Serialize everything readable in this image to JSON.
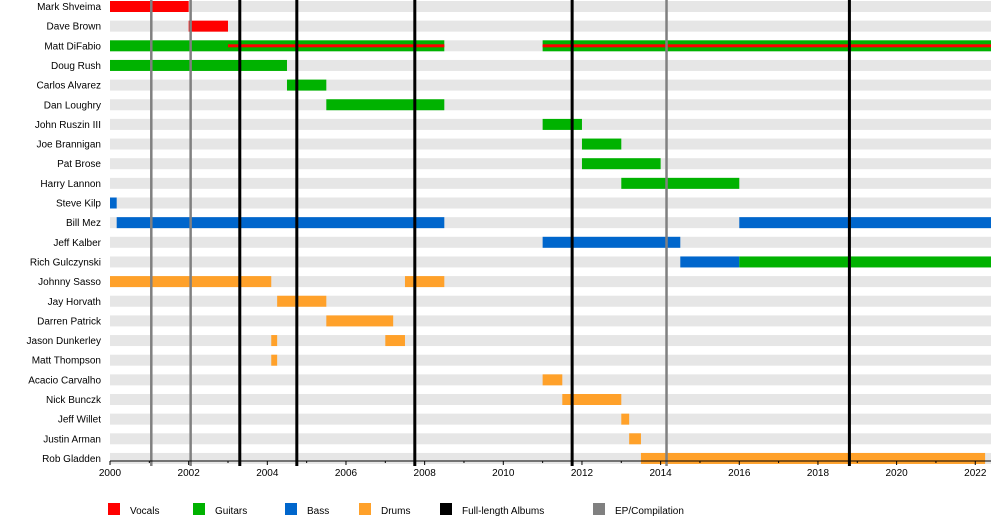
{
  "chart_data": {
    "type": "timeline",
    "x_range": [
      2000,
      2022.4
    ],
    "x_ticks": [
      "2000",
      "2002",
      "2004",
      "2006",
      "2008",
      "2010",
      "2012",
      "2014",
      "2016",
      "2018",
      "2020",
      "2022"
    ],
    "colors": {
      "Vocals": "#ff0000",
      "Guitars": "#00b200",
      "Bass": "#0066cc",
      "Drums": "#ffa12a",
      "Full-length Albums": "#000000",
      "EP/Compilation": "#808080",
      "row_background": "#e6e6e6"
    },
    "members": [
      {
        "name": "Mark Shveima",
        "roles": [
          {
            "role": "Vocals",
            "start": 2000.0,
            "end": 2002.0
          }
        ]
      },
      {
        "name": "Dave Brown",
        "roles": [
          {
            "role": "Vocals",
            "start": 2002.0,
            "end": 2003.0
          }
        ]
      },
      {
        "name": "Matt DiFabio",
        "roles": [
          {
            "role": "Guitars",
            "start": 2000.0,
            "end": 2008.5
          },
          {
            "role": "Vocals",
            "start": 2003.0,
            "end": 2008.5,
            "overlay": true
          },
          {
            "role": "Guitars",
            "start": 2011.0,
            "end": 2022.4
          },
          {
            "role": "Vocals",
            "start": 2011.0,
            "end": 2022.4,
            "overlay": true
          }
        ]
      },
      {
        "name": "Doug Rush",
        "roles": [
          {
            "role": "Guitars",
            "start": 2000.0,
            "end": 2004.5
          }
        ]
      },
      {
        "name": "Carlos Alvarez",
        "roles": [
          {
            "role": "Guitars",
            "start": 2004.5,
            "end": 2005.5
          }
        ]
      },
      {
        "name": "Dan Loughry",
        "roles": [
          {
            "role": "Guitars",
            "start": 2005.5,
            "end": 2008.5
          }
        ]
      },
      {
        "name": "John Ruszin III",
        "roles": [
          {
            "role": "Guitars",
            "start": 2011.0,
            "end": 2012.0
          }
        ]
      },
      {
        "name": "Joe Brannigan",
        "roles": [
          {
            "role": "Guitars",
            "start": 2012.0,
            "end": 2013.0
          }
        ]
      },
      {
        "name": "Pat Brose",
        "roles": [
          {
            "role": "Guitars",
            "start": 2012.0,
            "end": 2014.0
          }
        ]
      },
      {
        "name": "Harry Lannon",
        "roles": [
          {
            "role": "Guitars",
            "start": 2013.0,
            "end": 2016.0
          }
        ]
      },
      {
        "name": "Steve Kilp",
        "roles": [
          {
            "role": "Bass",
            "start": 2000.0,
            "end": 2000.17
          }
        ]
      },
      {
        "name": "Bill Mez",
        "roles": [
          {
            "role": "Bass",
            "start": 2000.17,
            "end": 2008.5
          },
          {
            "role": "Bass",
            "start": 2016.0,
            "end": 2022.4
          }
        ]
      },
      {
        "name": "Jeff Kalber",
        "roles": [
          {
            "role": "Bass",
            "start": 2011.0,
            "end": 2014.5
          }
        ]
      },
      {
        "name": "Rich Gulczynski",
        "roles": [
          {
            "role": "Bass",
            "start": 2014.5,
            "end": 2016.0
          },
          {
            "role": "Guitars",
            "start": 2016.0,
            "end": 2022.4
          }
        ]
      },
      {
        "name": "Johnny Sasso",
        "roles": [
          {
            "role": "Drums",
            "start": 2000.0,
            "end": 2004.1
          },
          {
            "role": "Drums",
            "start": 2007.5,
            "end": 2008.5
          }
        ]
      },
      {
        "name": "Jay Horvath",
        "roles": [
          {
            "role": "Drums",
            "start": 2004.25,
            "end": 2005.5
          }
        ]
      },
      {
        "name": "Darren Patrick",
        "roles": [
          {
            "role": "Drums",
            "start": 2005.5,
            "end": 2007.2
          }
        ]
      },
      {
        "name": "Jason Dunkerley",
        "roles": [
          {
            "role": "Drums",
            "start": 2004.1,
            "end": 2004.25
          },
          {
            "role": "Drums",
            "start": 2007.0,
            "end": 2007.5
          }
        ]
      },
      {
        "name": "Matt Thompson",
        "roles": [
          {
            "role": "Drums",
            "start": 2004.1,
            "end": 2004.25
          }
        ]
      },
      {
        "name": "Acacio Carvalho",
        "roles": [
          {
            "role": "Drums",
            "start": 2011.0,
            "end": 2011.5
          }
        ]
      },
      {
        "name": "Nick Bunczk",
        "roles": [
          {
            "role": "Drums",
            "start": 2011.5,
            "end": 2013.0
          }
        ]
      },
      {
        "name": "Jeff Willet",
        "roles": [
          {
            "role": "Drums",
            "start": 2013.0,
            "end": 2013.2
          }
        ]
      },
      {
        "name": "Justin Arman",
        "roles": [
          {
            "role": "Drums",
            "start": 2013.2,
            "end": 2013.5
          }
        ]
      },
      {
        "name": "Rob Gladden",
        "roles": [
          {
            "role": "Drums",
            "start": 2013.5,
            "end": 2022.25
          }
        ]
      }
    ],
    "album_lines": [
      {
        "kind": "EP/Compilation",
        "x": 2001.05
      },
      {
        "kind": "EP/Compilation",
        "x": 2002.05
      },
      {
        "kind": "Full-length Albums",
        "x": 2003.3
      },
      {
        "kind": "Full-length Albums",
        "x": 2004.75
      },
      {
        "kind": "Full-length Albums",
        "x": 2007.75
      },
      {
        "kind": "Full-length Albums",
        "x": 2011.75
      },
      {
        "kind": "EP/Compilation",
        "x": 2014.15
      },
      {
        "kind": "Full-length Albums",
        "x": 2018.8
      }
    ],
    "legend": [
      "Vocals",
      "Guitars",
      "Bass",
      "Drums",
      "Full-length Albums",
      "EP/Compilation"
    ]
  }
}
